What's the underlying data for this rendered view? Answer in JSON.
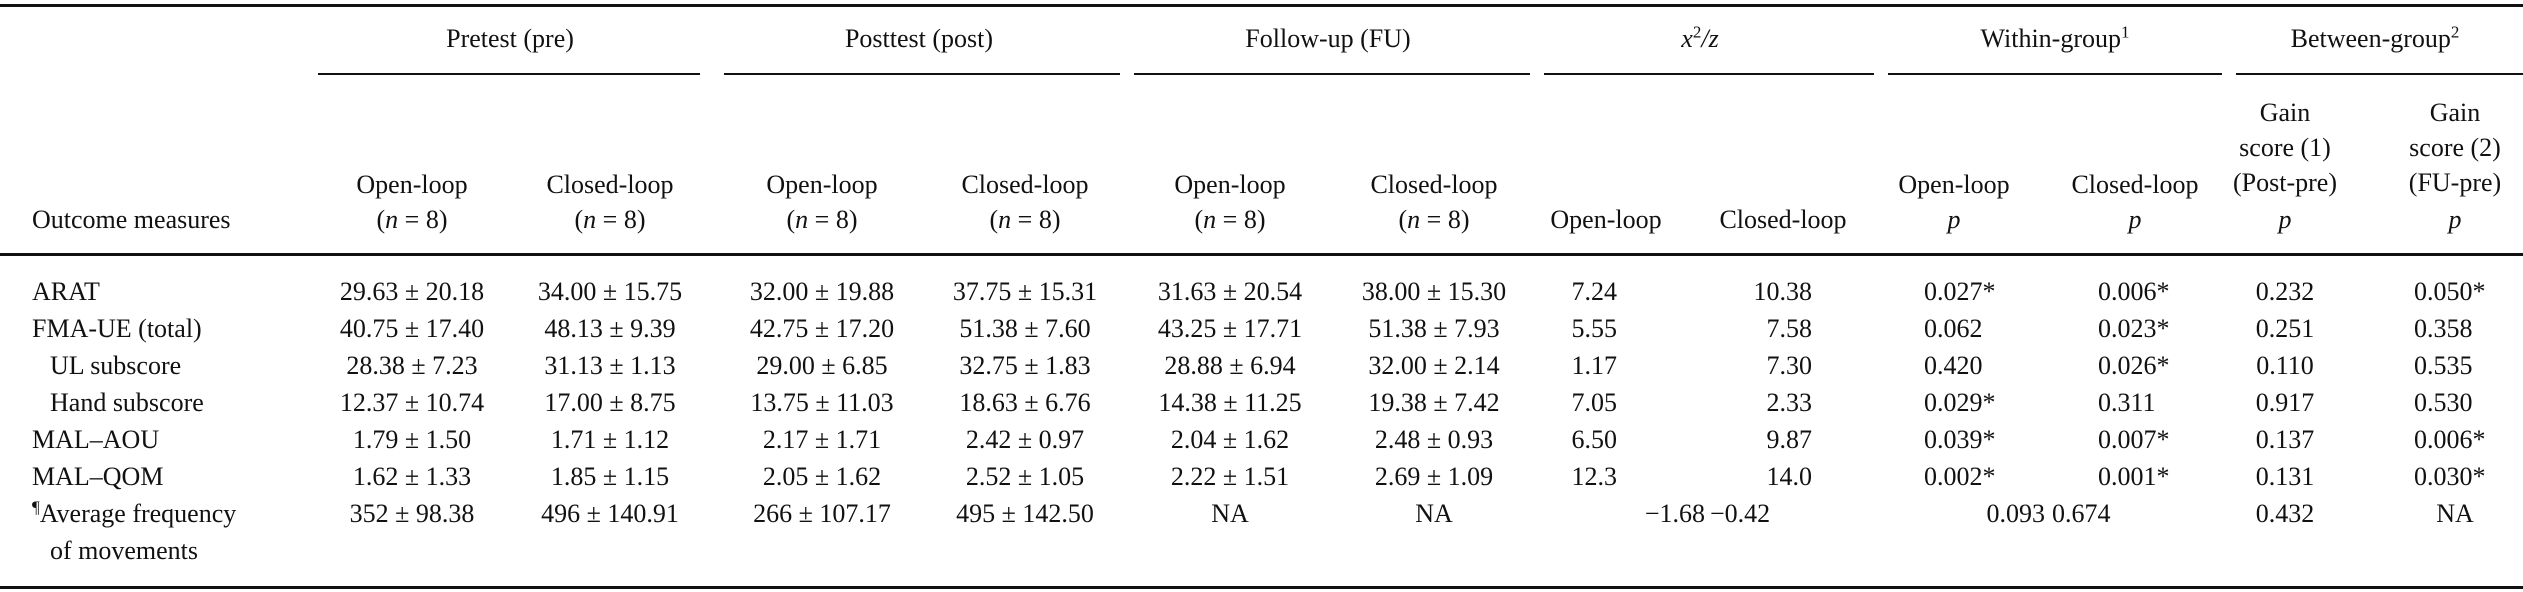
{
  "header": {
    "groups": {
      "pre": "Pretest (pre)",
      "post": "Posttest (post)",
      "fu": "Follow-up (FU)",
      "x2z_main": "x",
      "x2z_sup": "2",
      "x2z_rest": "/z",
      "within": "Within-group",
      "within_sup": "1",
      "between": "Between-group",
      "between_sup": "2"
    },
    "outcome_label": "Outcome measures",
    "open_loop": "Open-loop",
    "closed_loop": "Closed-loop",
    "n_prefix": "(",
    "n_var": "n",
    "n_suffix": " = 8)",
    "p": "p",
    "gain1": [
      "Gain",
      "score (1)",
      "(Post-pre)"
    ],
    "gain2": [
      "Gain",
      "score (2)",
      "(FU-pre)"
    ]
  },
  "rows": [
    {
      "label": "ARAT",
      "pre_o": "29.63 ± 20.18",
      "pre_c": "34.00 ± 15.75",
      "post_o": "32.00 ± 19.88",
      "post_c": "37.75 ± 15.31",
      "fu_o": "31.63 ± 20.54",
      "fu_c": "38.00 ± 15.30",
      "x_o": "7.24",
      "x_c": "10.38",
      "w_o": "0.027*",
      "w_c": "0.006*",
      "g1": "0.232",
      "g2": "0.050*"
    },
    {
      "label": "FMA-UE (total)",
      "pre_o": "40.75 ± 17.40",
      "pre_c": "48.13 ± 9.39",
      "post_o": "42.75 ± 17.20",
      "post_c": "51.38 ± 7.60",
      "fu_o": "43.25 ± 17.71",
      "fu_c": "51.38 ± 7.93",
      "x_o": "5.55",
      "x_c": "7.58",
      "w_o": "0.062",
      "w_c": "0.023*",
      "g1": "0.251",
      "g2": "0.358"
    },
    {
      "label": "UL subscore",
      "pre_o": "28.38 ± 7.23",
      "pre_c": "31.13 ± 1.13",
      "post_o": "29.00 ± 6.85",
      "post_c": "32.75 ± 1.83",
      "fu_o": "28.88 ± 6.94",
      "fu_c": "32.00 ± 2.14",
      "x_o": "1.17",
      "x_c": "7.30",
      "w_o": "0.420",
      "w_c": "0.026*",
      "g1": "0.110",
      "g2": "0.535"
    },
    {
      "label": "Hand subscore",
      "pre_o": "12.37 ± 10.74",
      "pre_c": "17.00 ± 8.75",
      "post_o": "13.75 ± 11.03",
      "post_c": "18.63 ± 6.76",
      "fu_o": "14.38 ± 11.25",
      "fu_c": "19.38 ± 7.42",
      "x_o": "7.05",
      "x_c": "2.33",
      "w_o": "0.029*",
      "w_c": "0.311",
      "g1": "0.917",
      "g2": "0.530"
    },
    {
      "label": "MAL–AOU",
      "pre_o": "1.79 ± 1.50",
      "pre_c": "1.71 ± 1.12",
      "post_o": "2.17 ± 1.71",
      "post_c": "2.42 ± 0.97",
      "fu_o": "2.04 ± 1.62",
      "fu_c": "2.48 ± 0.93",
      "x_o": "6.50",
      "x_c": "9.87",
      "w_o": "0.039*",
      "w_c": "0.007*",
      "g1": "0.137",
      "g2": "0.006*"
    },
    {
      "label": "MAL–QOM",
      "pre_o": "1.62 ± 1.33",
      "pre_c": "1.85 ± 1.15",
      "post_o": "2.05 ± 1.62",
      "post_c": "2.52 ± 1.05",
      "fu_o": "2.22 ± 1.51",
      "fu_c": "2.69 ± 1.09",
      "x_o": "12.3",
      "x_c": "14.0",
      "w_o": "0.002*",
      "w_c": "0.001*",
      "g1": "0.131",
      "g2": "0.030*"
    }
  ],
  "last_row": {
    "mark": "¶",
    "label1": "Average frequency",
    "label2": "of movements",
    "pre_o": "352 ± 98.38",
    "pre_c": "496 ± 140.91",
    "post_o": "266 ± 107.17",
    "post_c": "495 ± 142.50",
    "fu_o": "NA",
    "fu_c": "NA",
    "x_o": "−1.68",
    "x_c": "−0.42",
    "w_o": "0.093",
    "w_c": "0.674",
    "g1": "0.432",
    "g2": "NA"
  }
}
